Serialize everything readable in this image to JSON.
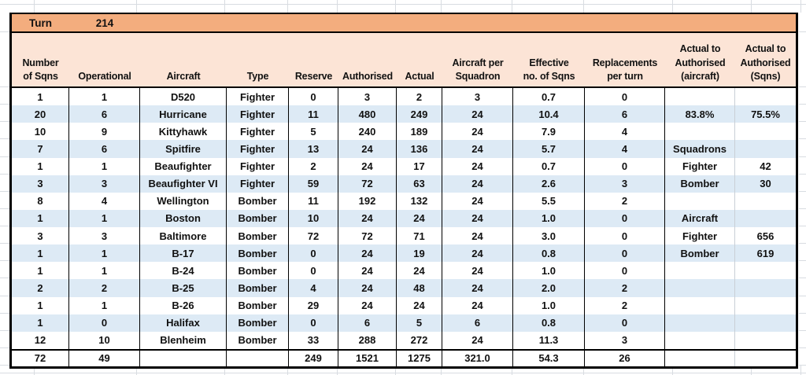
{
  "turn": {
    "label": "Turn",
    "value": "214"
  },
  "columns": [
    "Number\nof Sqns",
    "Operational",
    "Aircraft",
    "Type",
    "Reserve",
    "Authorised",
    "Actual",
    "Aircraft per\nSquadron",
    "Effective\nno. of Sqns",
    "Replacements\nper turn",
    "Actual to\nAuthorised\n(aircraft)",
    "Actual to\nAuthorised\n(Sqns)"
  ],
  "rows": [
    [
      "1",
      "1",
      "D520",
      "Fighter",
      "0",
      "3",
      "2",
      "3",
      "0.7",
      "0",
      "",
      ""
    ],
    [
      "20",
      "6",
      "Hurricane",
      "Fighter",
      "11",
      "480",
      "249",
      "24",
      "10.4",
      "6",
      "83.8%",
      "75.5%"
    ],
    [
      "10",
      "9",
      "Kittyhawk",
      "Fighter",
      "5",
      "240",
      "189",
      "24",
      "7.9",
      "4",
      "",
      ""
    ],
    [
      "7",
      "6",
      "Spitfire",
      "Fighter",
      "13",
      "24",
      "136",
      "24",
      "5.7",
      "4",
      "Squadrons",
      ""
    ],
    [
      "1",
      "1",
      "Beaufighter",
      "Fighter",
      "2",
      "24",
      "17",
      "24",
      "0.7",
      "0",
      "Fighter",
      "42"
    ],
    [
      "3",
      "3",
      "Beaufighter VI",
      "Fighter",
      "59",
      "72",
      "63",
      "24",
      "2.6",
      "3",
      "Bomber",
      "30"
    ],
    [
      "8",
      "4",
      "Wellington",
      "Bomber",
      "11",
      "192",
      "132",
      "24",
      "5.5",
      "2",
      "",
      ""
    ],
    [
      "1",
      "1",
      "Boston",
      "Bomber",
      "10",
      "24",
      "24",
      "24",
      "1.0",
      "0",
      "Aircraft",
      ""
    ],
    [
      "3",
      "3",
      "Baltimore",
      "Bomber",
      "72",
      "72",
      "71",
      "24",
      "3.0",
      "0",
      "Fighter",
      "656"
    ],
    [
      "1",
      "1",
      "B-17",
      "Bomber",
      "0",
      "24",
      "19",
      "24",
      "0.8",
      "0",
      "Bomber",
      "619"
    ],
    [
      "1",
      "1",
      "B-24",
      "Bomber",
      "0",
      "24",
      "24",
      "24",
      "1.0",
      "0",
      "",
      ""
    ],
    [
      "2",
      "2",
      "B-25",
      "Bomber",
      "4",
      "24",
      "48",
      "24",
      "2.0",
      "2",
      "",
      ""
    ],
    [
      "1",
      "1",
      "B-26",
      "Bomber",
      "29",
      "24",
      "24",
      "24",
      "1.0",
      "2",
      "",
      ""
    ],
    [
      "1",
      "0",
      "Halifax",
      "Bomber",
      "0",
      "6",
      "5",
      "6",
      "0.8",
      "0",
      "",
      ""
    ],
    [
      "12",
      "10",
      "Blenheim",
      "Bomber",
      "33",
      "288",
      "272",
      "24",
      "11.3",
      "3",
      "",
      ""
    ]
  ],
  "totals": [
    "72",
    "49",
    "",
    "",
    "249",
    "1521",
    "1275",
    "321.0",
    "54.3",
    "26",
    "",
    ""
  ],
  "colors": {
    "turn_bar": "#f3ad7e",
    "header_bg": "#fce4d6",
    "stripe": "#ddeaf5",
    "border": "#000000",
    "gridline": "#d8dce1"
  }
}
